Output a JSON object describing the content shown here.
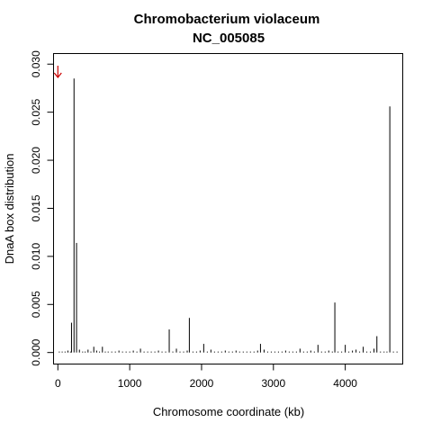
{
  "chart_data": {
    "type": "bar",
    "title": "Chromobacterium violaceum",
    "subtitle": "NC_005085",
    "xlabel": "Chromosome coordinate (kb)",
    "ylabel": "DnaA box distribution",
    "xlim": [
      -60,
      4800
    ],
    "ylim": [
      -0.0012,
      0.0311
    ],
    "x_ticks": [
      0,
      1000,
      2000,
      3000,
      4000
    ],
    "x_tick_labels": [
      "0",
      "1000",
      "2000",
      "3000",
      "4000"
    ],
    "y_ticks": [
      0.0,
      0.005,
      0.01,
      0.015,
      0.02,
      0.025,
      0.03
    ],
    "y_tick_labels": [
      "0.000",
      "0.005",
      "0.010",
      "0.015",
      "0.020",
      "0.025",
      "0.030"
    ],
    "grid": false,
    "bar_color": "#000000",
    "marker": {
      "name": "origin-arrow",
      "x": 0,
      "color": "#cc0000"
    },
    "x": [
      20,
      60,
      100,
      140,
      175,
      190,
      225,
      260,
      300,
      345,
      380,
      420,
      460,
      500,
      540,
      580,
      620,
      660,
      700,
      750,
      800,
      850,
      900,
      950,
      1000,
      1050,
      1100,
      1150,
      1200,
      1250,
      1300,
      1350,
      1400,
      1450,
      1500,
      1550,
      1600,
      1650,
      1700,
      1750,
      1800,
      1830,
      1880,
      1930,
      1980,
      2030,
      2080,
      2130,
      2180,
      2230,
      2280,
      2330,
      2380,
      2430,
      2480,
      2530,
      2580,
      2630,
      2680,
      2730,
      2780,
      2820,
      2870,
      2920,
      2970,
      3020,
      3070,
      3120,
      3170,
      3220,
      3270,
      3320,
      3370,
      3420,
      3470,
      3520,
      3570,
      3620,
      3670,
      3720,
      3770,
      3820,
      3855,
      3900,
      3950,
      4000,
      4050,
      4100,
      4150,
      4200,
      4250,
      4300,
      4350,
      4400,
      4440,
      4490,
      4540,
      4580,
      4620,
      4670,
      4720
    ],
    "values": [
      0.0001,
      0.0001,
      0.0001,
      0.0002,
      0.0001,
      0.0031,
      0.0285,
      0.0114,
      0.0003,
      0.0001,
      0.0001,
      0.0003,
      0.0001,
      0.0006,
      0.0002,
      0.0001,
      0.0006,
      0.0001,
      0.0001,
      0.0001,
      0.0001,
      0.0002,
      0.0001,
      0.0001,
      0.0001,
      0.0002,
      0.0001,
      0.0004,
      0.0001,
      0.0001,
      0.0001,
      0.0001,
      0.0002,
      0.0001,
      0.0001,
      0.0024,
      0.0001,
      0.0004,
      0.0001,
      0.0001,
      0.0002,
      0.0036,
      0.0001,
      0.0001,
      0.0002,
      0.0009,
      0.0001,
      0.0003,
      0.0001,
      0.0001,
      0.0001,
      0.0002,
      0.0001,
      0.0001,
      0.0002,
      0.0001,
      0.0001,
      0.0001,
      0.0001,
      0.0001,
      0.0002,
      0.0009,
      0.0003,
      0.0001,
      0.0001,
      0.0001,
      0.0001,
      0.0001,
      0.0002,
      0.0001,
      0.0001,
      0.0001,
      0.0004,
      0.0001,
      0.0001,
      0.0002,
      0.0001,
      0.0008,
      0.0001,
      0.0001,
      0.0002,
      0.0001,
      0.0052,
      0.0001,
      0.0001,
      0.0008,
      0.0001,
      0.0002,
      0.0003,
      0.0001,
      0.0006,
      0.0001,
      0.0001,
      0.0004,
      0.0017,
      0.0001,
      0.0001,
      0.0001,
      0.0256,
      0.0001,
      0.0001
    ]
  }
}
